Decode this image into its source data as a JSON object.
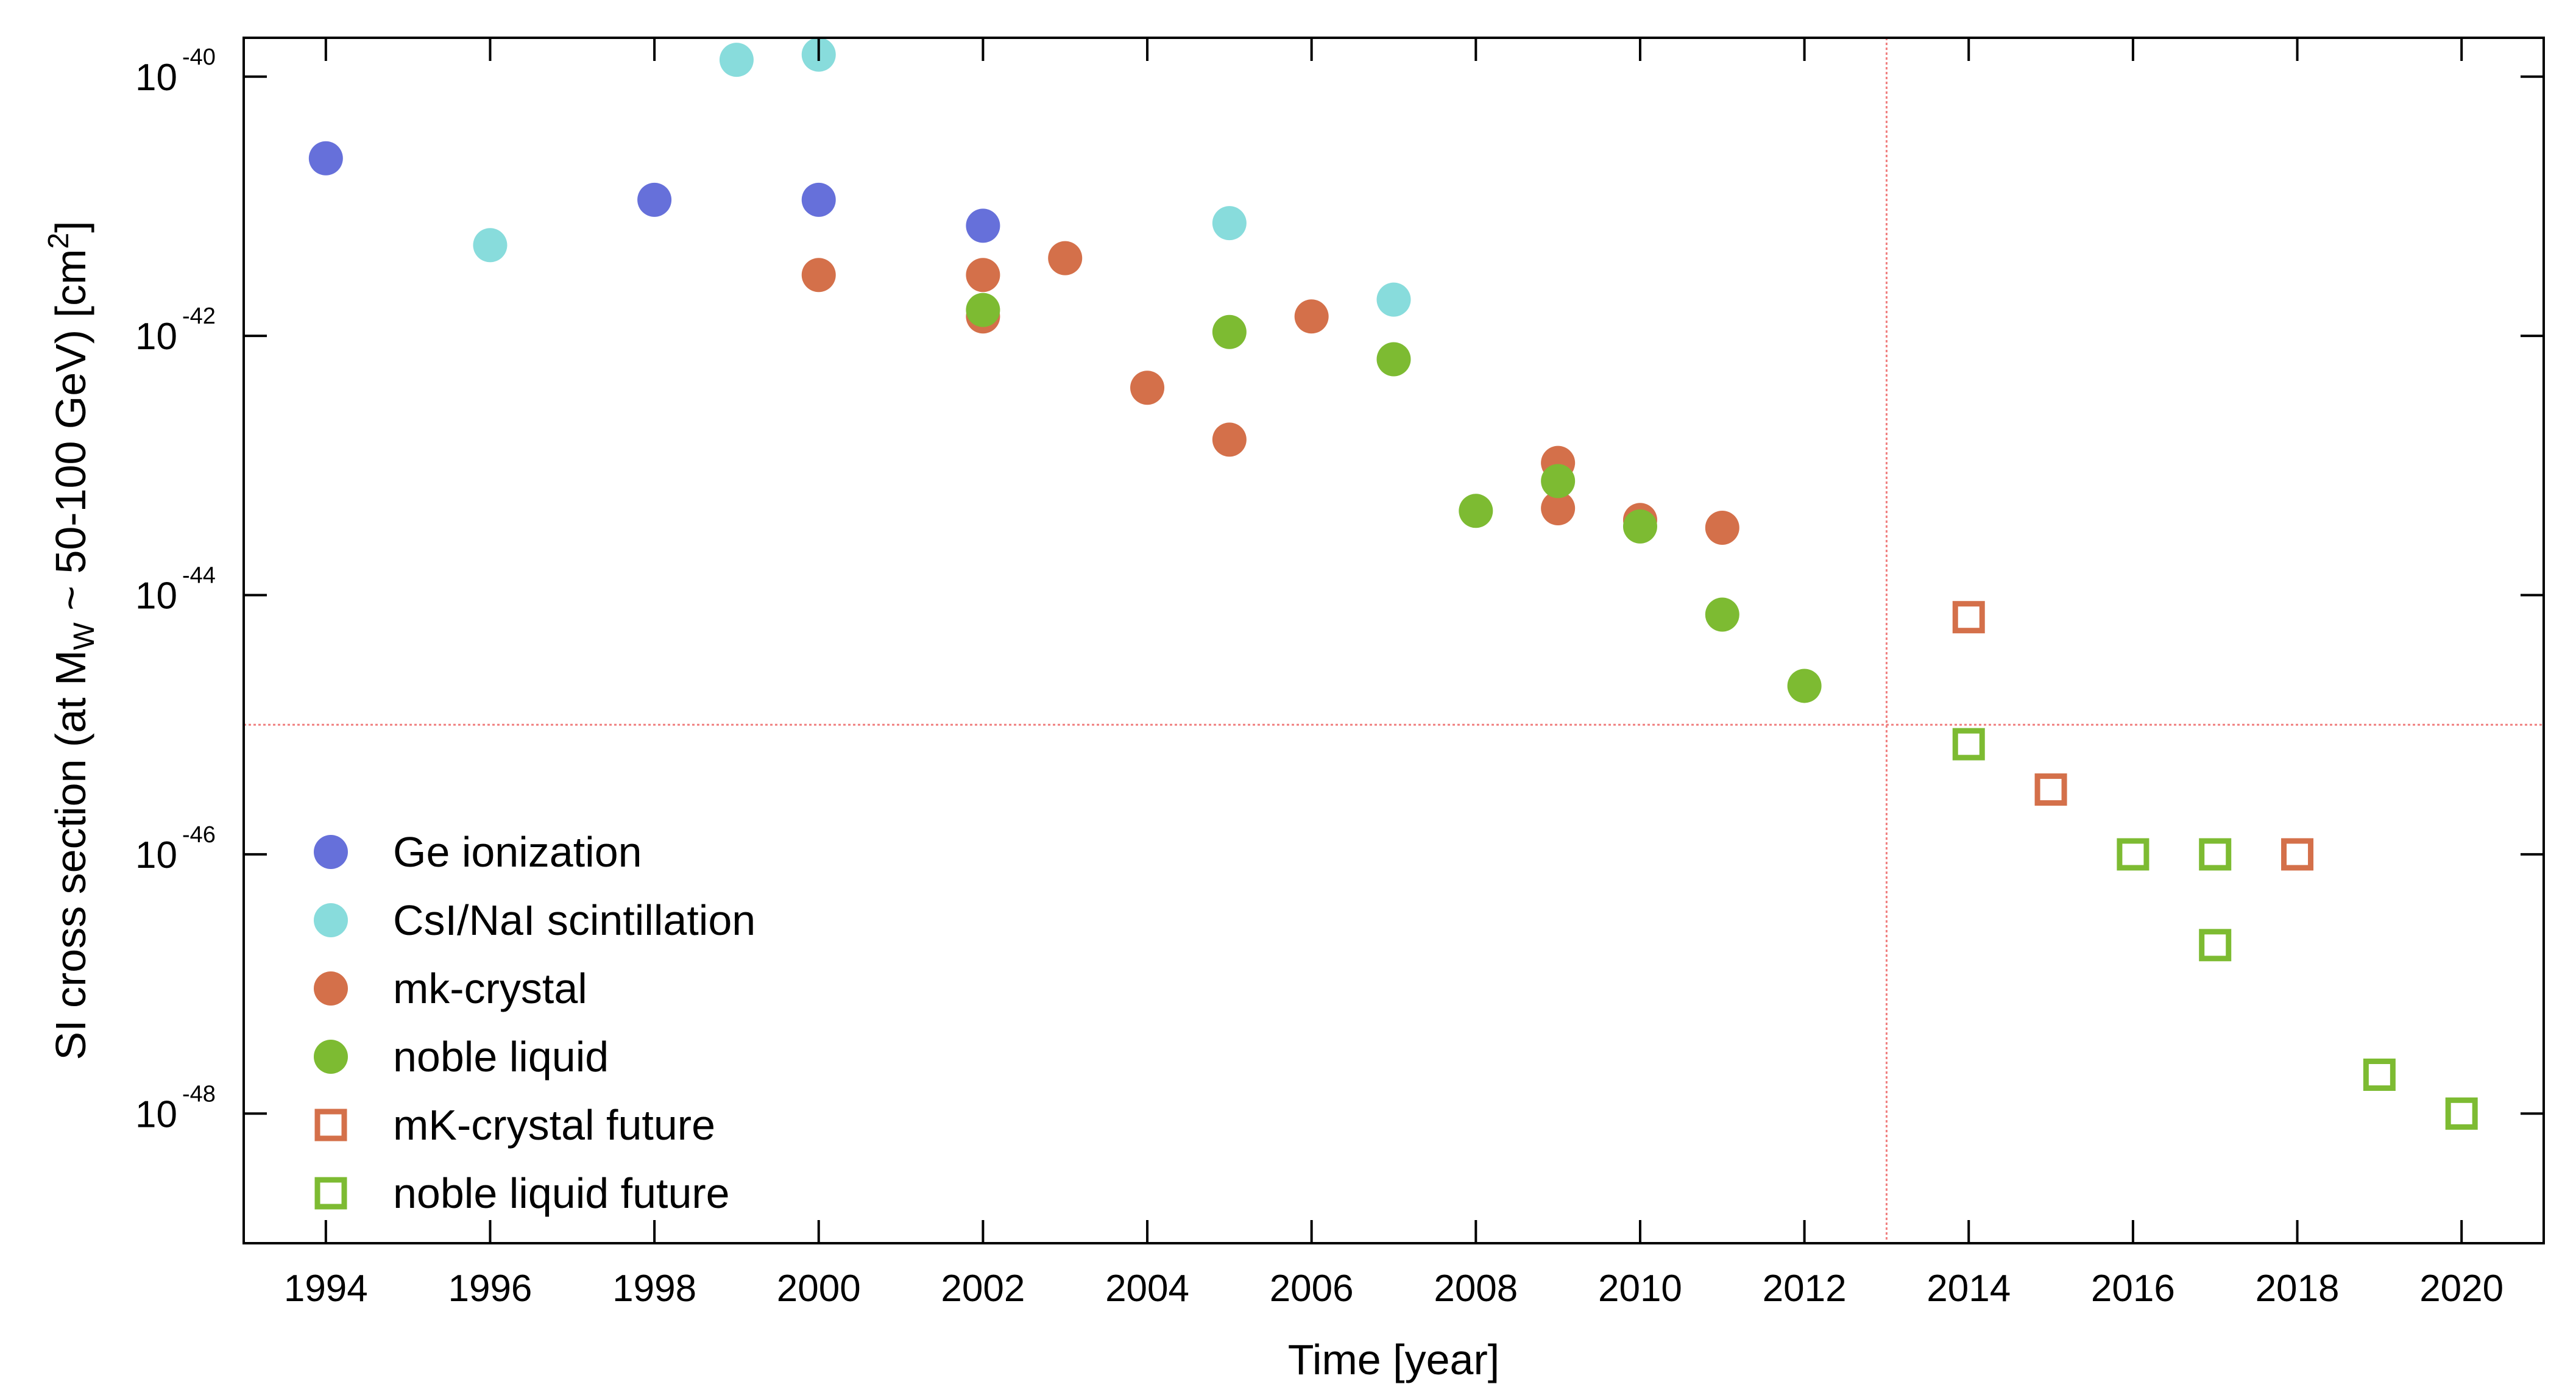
{
  "chart_data": {
    "type": "scatter",
    "title": "",
    "xlabel": "Time [year]",
    "ylabel": {
      "prefix": "SI cross section (at M",
      "sub": "W",
      "mid": " ~ 50-100 GeV) [cm",
      "sup": "2",
      "suffix": "]"
    },
    "xlim": [
      1993,
      2021
    ],
    "ylim_log10": [
      -49,
      -39.7
    ],
    "x_ticks": [
      1994,
      1996,
      1998,
      2000,
      2002,
      2004,
      2006,
      2008,
      2010,
      2012,
      2014,
      2016,
      2018,
      2020
    ],
    "x_tick_labels": [
      "1994",
      "1996",
      "1998",
      "2000",
      "2002",
      "2004",
      "2006",
      "2008",
      "2010",
      "2012",
      "2014",
      "2016",
      "2018",
      "2020"
    ],
    "y_ticks_log10": [
      -40,
      -42,
      -44,
      -46,
      -48
    ],
    "y_tick_base": "10",
    "y_tick_exponents": [
      "-40",
      "-42",
      "-44",
      "-46",
      "-48"
    ],
    "reference_lines": {
      "x": 2013,
      "y_log10": -45.0,
      "color": "#f08080"
    },
    "legend_position": "bottom-left",
    "series": [
      {
        "name": "Ge ionization",
        "marker": "filled-circle",
        "color": "#6670da",
        "x": [
          1994,
          1998,
          2000,
          2002
        ],
        "y_log10": [
          -40.63,
          -40.95,
          -40.95,
          -41.15
        ]
      },
      {
        "name": "CsI/NaI scintillation",
        "marker": "filled-circle",
        "color": "#88dcdc",
        "x": [
          1996,
          1999,
          2000,
          2005,
          2007
        ],
        "y_log10": [
          -41.3,
          -39.87,
          -39.83,
          -41.13,
          -41.72
        ]
      },
      {
        "name": "mk-crystal",
        "marker": "filled-circle",
        "color": "#d4704a",
        "x": [
          2000,
          2002,
          2002,
          2003,
          2004,
          2005,
          2006,
          2009,
          2009,
          2010,
          2011
        ],
        "y_log10": [
          -41.53,
          -41.53,
          -41.85,
          -41.4,
          -42.4,
          -42.8,
          -41.85,
          -42.98,
          -43.33,
          -43.42,
          -43.48
        ]
      },
      {
        "name": "noble liquid",
        "marker": "filled-circle",
        "color": "#7dbb32",
        "x": [
          2002,
          2005,
          2007,
          2008,
          2009,
          2010,
          2011,
          2012
        ],
        "y_log10": [
          -41.8,
          -41.97,
          -42.18,
          -43.35,
          -43.12,
          -43.47,
          -44.15,
          -44.7
        ]
      },
      {
        "name": "mK-crystal future",
        "marker": "open-square",
        "color": "#d4704a",
        "x": [
          2014,
          2015,
          2018
        ],
        "y_log10": [
          -44.17,
          -45.5,
          -46.0
        ]
      },
      {
        "name": "noble liquid future",
        "marker": "open-square",
        "color": "#7dbb32",
        "x": [
          2014,
          2016,
          2017,
          2017,
          2019,
          2020
        ],
        "y_log10": [
          -45.15,
          -46.0,
          -46.0,
          -46.7,
          -47.7,
          -48.0
        ]
      }
    ]
  }
}
